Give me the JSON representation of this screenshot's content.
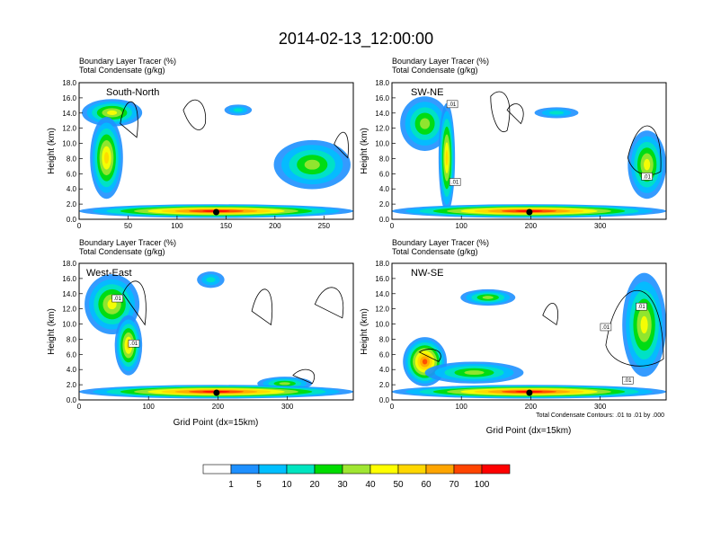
{
  "figure": {
    "title": "2014-02-13_12:00:00",
    "xlabel": "Grid Point (dx=15km)",
    "note": "Total Condensate Contours: .01 to .01 by .000"
  },
  "colorbar": {
    "colors": [
      "#ffffff",
      "#1e90ff",
      "#00bfff",
      "#00e5c0",
      "#00dc00",
      "#a0e632",
      "#ffff00",
      "#ffd700",
      "#ffa500",
      "#ff4500",
      "#ff0000"
    ],
    "labels": [
      "1",
      "5",
      "10",
      "20",
      "30",
      "40",
      "50",
      "60",
      "70",
      "100"
    ]
  },
  "chart_data": [
    {
      "type": "heatmap",
      "panel_label": "South-North",
      "title_lines": [
        "Boundary Layer Tracer   (%)",
        "Total Condensate   (g/kg)"
      ],
      "ylabel": "Height (km)",
      "xlim": [
        0,
        280
      ],
      "ylim": [
        0,
        18
      ],
      "xticks": [
        "0",
        "50",
        "100",
        "150",
        "200",
        "250"
      ],
      "yticks": [
        "0.0",
        "2.0",
        "4.0",
        "6.0",
        "8.0",
        "10.0",
        "12.0",
        "14.0",
        "16.0",
        "18.0"
      ],
      "contour_labels": [],
      "marker_x": 140
    },
    {
      "type": "heatmap",
      "panel_label": "SW-NE",
      "title_lines": [
        "Boundary Layer Tracer   (%)",
        "Total Condensate   (g/kg)"
      ],
      "ylabel": "Height (km)",
      "xlim": [
        0,
        395
      ],
      "ylim": [
        0,
        18
      ],
      "xticks": [
        "0",
        "100",
        "200",
        "300"
      ],
      "yticks": [
        "0.0",
        "2.0",
        "4.0",
        "6.0",
        "8.0",
        "10.0",
        "12.0",
        "14.0",
        "16.0",
        "18.0"
      ],
      "contour_labels": [
        ".01",
        ".01",
        ".01"
      ],
      "marker_x": 198
    },
    {
      "type": "heatmap",
      "panel_label": "West-East",
      "title_lines": [
        "Boundary Layer Tracer   (%)",
        "Total Condensate   (g/kg)"
      ],
      "ylabel": "Height (km)",
      "xlim": [
        0,
        395
      ],
      "ylim": [
        0,
        18
      ],
      "xticks": [
        "0",
        "100",
        "200",
        "300"
      ],
      "yticks": [
        "0.0",
        "2.0",
        "4.0",
        "6.0",
        "8.0",
        "10.0",
        "12.0",
        "14.0",
        "16.0",
        "18.0"
      ],
      "contour_labels": [
        ".01",
        ".01"
      ],
      "marker_x": 198
    },
    {
      "type": "heatmap",
      "panel_label": "NW-SE",
      "title_lines": [
        "Boundary Layer Tracer   (%)",
        "Total Condensate   (g/kg)"
      ],
      "ylabel": "Height (km)",
      "xlim": [
        0,
        395
      ],
      "ylim": [
        0,
        18
      ],
      "xticks": [
        "0",
        "100",
        "200",
        "300"
      ],
      "yticks": [
        "0.0",
        "2.0",
        "4.0",
        "6.0",
        "8.0",
        "10.0",
        "12.0",
        "14.0",
        "16.0",
        "18.0"
      ],
      "contour_labels": [
        ".01",
        ".01",
        ".01"
      ],
      "marker_x": 198
    }
  ]
}
